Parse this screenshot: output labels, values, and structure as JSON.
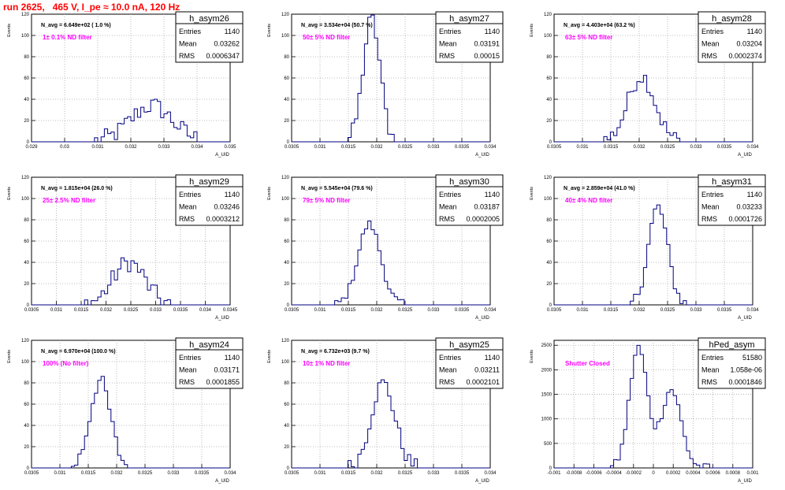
{
  "title": "run 2625,   465 V, I_pe ≈ 10.0 nA, 120 Hz",
  "colors": {
    "title": "#ff0000",
    "annotation": "#ff00ff",
    "line": "#000080",
    "grid": "#aaaaaa"
  },
  "stat_labels": {
    "entries": "Entries",
    "mean": "Mean",
    "rms": "RMS"
  },
  "chart_data": [
    {
      "type": "histogram",
      "name": "h_asym26",
      "stats": {
        "entries": "1140",
        "mean": "0.03262",
        "rms": "0.0006347"
      },
      "navg": "N_avg = 6.649e+02 ( 1.0 %)",
      "annotation": "1± 0.1% ND filter",
      "xlabel": "A_UID",
      "ylabel": "Events",
      "xlim": [
        0.029,
        0.035
      ],
      "ylim": [
        0,
        120
      ],
      "grid": true,
      "xticks": [
        "0.029",
        "0.03",
        "0.031",
        "0.032",
        "0.033",
        "0.034",
        "0.035"
      ],
      "yticks": [
        "0",
        "20",
        "40",
        "60",
        "80",
        "100",
        "120"
      ],
      "mean": 0.03262,
      "sigma": 0.00063,
      "peak": 34,
      "noise": 9
    },
    {
      "type": "histogram",
      "name": "h_asym27",
      "stats": {
        "entries": "1140",
        "mean": "0.03191",
        "rms": "0.00015"
      },
      "navg": "N_avg = 3.534e+04 (50.7 %)",
      "annotation": "50± 5% ND filter",
      "xlabel": "A_UID",
      "ylabel": "Events",
      "xlim": [
        0.0305,
        0.034
      ],
      "ylim": [
        0,
        120
      ],
      "grid": true,
      "xticks": [
        "0.0305",
        "0.031",
        "0.0315",
        "0.032",
        "0.0325",
        "0.033",
        "0.0335",
        "0.034"
      ],
      "yticks": [
        "0",
        "20",
        "40",
        "60",
        "80",
        "100",
        "120"
      ],
      "mean": 0.03191,
      "sigma": 0.00015,
      "peak": 115,
      "noise": 8
    },
    {
      "type": "histogram",
      "name": "h_asym28",
      "stats": {
        "entries": "1140",
        "mean": "0.03204",
        "rms": "0.0002374"
      },
      "navg": "N_avg = 4.403e+04 (63.2 %)",
      "annotation": "63± 5% ND filter",
      "xlabel": "A_UID",
      "ylabel": "Events",
      "xlim": [
        0.0305,
        0.034
      ],
      "ylim": [
        0,
        120
      ],
      "grid": true,
      "xticks": [
        "0.0305",
        "0.031",
        "0.0315",
        "0.032",
        "0.0325",
        "0.033",
        "0.0335",
        "0.034"
      ],
      "yticks": [
        "0",
        "20",
        "40",
        "60",
        "80",
        "100",
        "120"
      ],
      "mean": 0.03204,
      "sigma": 0.00024,
      "peak": 62,
      "noise": 8
    },
    {
      "type": "histogram",
      "name": "h_asym29",
      "stats": {
        "entries": "1140",
        "mean": "0.03246",
        "rms": "0.0003212"
      },
      "navg": "N_avg = 1.815e+04 (26.0 %)",
      "annotation": "25± 2.5% ND filter",
      "xlabel": "A_UID",
      "ylabel": "Events",
      "xlim": [
        0.0305,
        0.0345
      ],
      "ylim": [
        0,
        120
      ],
      "grid": true,
      "xticks": [
        "0.0305",
        "0.031",
        "0.0315",
        "0.032",
        "0.0325",
        "0.033",
        "0.0335",
        "0.034",
        "0.0345"
      ],
      "yticks": [
        "0",
        "20",
        "40",
        "60",
        "80",
        "100",
        "120"
      ],
      "mean": 0.03246,
      "sigma": 0.00032,
      "peak": 40,
      "noise": 9
    },
    {
      "type": "histogram",
      "name": "h_asym30",
      "stats": {
        "entries": "1140",
        "mean": "0.03187",
        "rms": "0.0002005"
      },
      "navg": "N_avg = 5.545e+04 (79.6 %)",
      "annotation": "79± 5% ND filter",
      "xlabel": "A_UID",
      "ylabel": "Events",
      "xlim": [
        0.0305,
        0.034
      ],
      "ylim": [
        0,
        120
      ],
      "grid": true,
      "xticks": [
        "0.0305",
        "0.031",
        "0.0315",
        "0.032",
        "0.0325",
        "0.033",
        "0.0335",
        "0.034"
      ],
      "yticks": [
        "0",
        "20",
        "40",
        "60",
        "80",
        "100",
        "120"
      ],
      "mean": 0.03187,
      "sigma": 0.0002,
      "peak": 76,
      "noise": 4
    },
    {
      "type": "histogram",
      "name": "h_asym31",
      "stats": {
        "entries": "1140",
        "mean": "0.03233",
        "rms": "0.0001726"
      },
      "navg": "N_avg = 2.859e+04 (41.0 %)",
      "annotation": "40± 4% ND filter",
      "xlabel": "A_UID",
      "ylabel": "Events",
      "xlim": [
        0.0305,
        0.034
      ],
      "ylim": [
        0,
        120
      ],
      "grid": true,
      "xticks": [
        "0.0305",
        "0.031",
        "0.0315",
        "0.032",
        "0.0325",
        "0.033",
        "0.0335",
        "0.034"
      ],
      "yticks": [
        "0",
        "20",
        "40",
        "60",
        "80",
        "100",
        "120"
      ],
      "mean": 0.03233,
      "sigma": 0.00017,
      "peak": 92,
      "noise": 6
    },
    {
      "type": "histogram",
      "name": "h_asym24",
      "stats": {
        "entries": "1140",
        "mean": "0.03171",
        "rms": "0.0001855"
      },
      "navg": "N_avg = 6.970e+04 (100.0 %)",
      "annotation": "100% (No filter)",
      "xlabel": "A_UID",
      "ylabel": "Events",
      "xlim": [
        0.0305,
        0.034
      ],
      "ylim": [
        0,
        120
      ],
      "grid": true,
      "xticks": [
        "0.0305",
        "0.031",
        "0.0315",
        "0.032",
        "0.0325",
        "0.033",
        "0.0335",
        "0.034"
      ],
      "yticks": [
        "0",
        "20",
        "40",
        "60",
        "80",
        "100",
        "120"
      ],
      "mean": 0.03171,
      "sigma": 0.00018,
      "peak": 82,
      "noise": 7
    },
    {
      "type": "histogram",
      "name": "h_asym25",
      "stats": {
        "entries": "1140",
        "mean": "0.03211",
        "rms": "0.0002101"
      },
      "navg": "N_avg = 6.732e+03 (9.7 %)",
      "annotation": "10± 1% ND filter",
      "xlabel": "A_UID",
      "ylabel": "Events",
      "xlim": [
        0.0305,
        0.034
      ],
      "ylim": [
        0,
        120
      ],
      "grid": true,
      "xticks": [
        "0.0305",
        "0.031",
        "0.0315",
        "0.032",
        "0.0325",
        "0.033",
        "0.0335",
        "0.034"
      ],
      "yticks": [
        "0",
        "20",
        "40",
        "60",
        "80",
        "100",
        "120"
      ],
      "mean": 0.03211,
      "sigma": 0.00021,
      "peak": 80,
      "noise": 7
    },
    {
      "type": "histogram",
      "name": "hPed_asym",
      "stats": {
        "entries": "51580",
        "mean": "1.058e-06",
        "rms": "0.0001846"
      },
      "navg": "",
      "annotation": "Shutter Closed",
      "xlabel": "A_UID",
      "ylabel": "Events",
      "xlim": [
        -0.001,
        0.001
      ],
      "ylim": [
        0,
        2600
      ],
      "grid": true,
      "xticks": [
        "-0.001",
        "-0.0008",
        "-0.0006",
        "-0.0004",
        "-0.0002",
        "0",
        "0.0002",
        "0.0004",
        "0.0006",
        "0.0008",
        "0.001"
      ],
      "yticks": [
        "0",
        "500",
        "1000",
        "1500",
        "2000",
        "2500"
      ],
      "bimodal": [
        {
          "mean": -0.00015,
          "sigma": 9e-05,
          "peak": 2450
        },
        {
          "mean": 0.00018,
          "sigma": 0.0001,
          "peak": 1600
        }
      ]
    }
  ]
}
